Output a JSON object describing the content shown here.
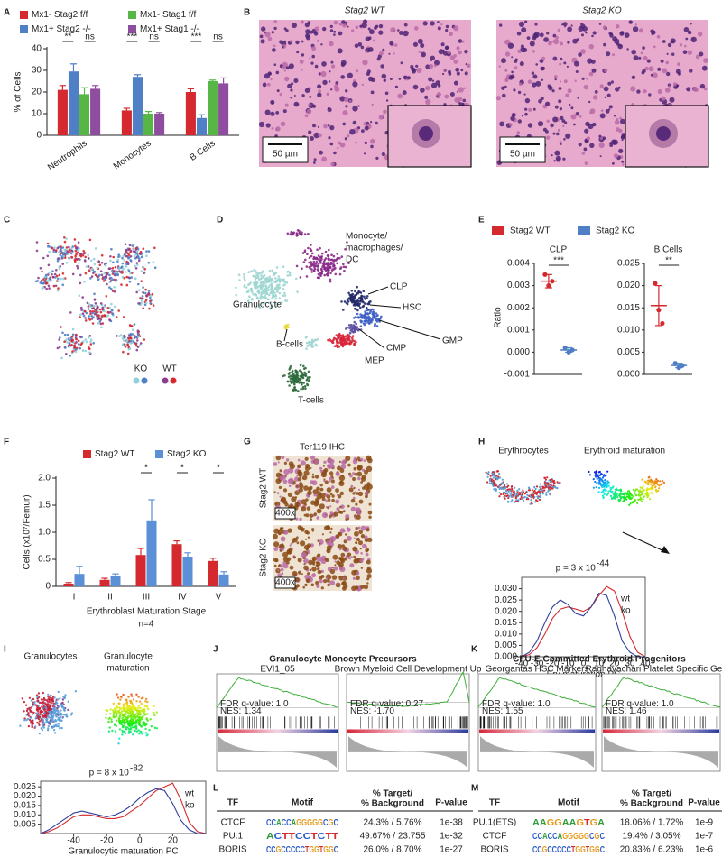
{
  "panel_labels": [
    "A",
    "B",
    "C",
    "D",
    "E",
    "F",
    "G",
    "H",
    "I",
    "J",
    "K",
    "L",
    "M"
  ],
  "chart_data": [
    {
      "type": "bar",
      "ylabel": "% of Cells",
      "categories": [
        "Neutrophils",
        "Monocytes",
        "B Cells"
      ],
      "series": [
        {
          "name": "Mx1- Stag2 f/f",
          "color": "#d42a2f",
          "values": [
            21,
            11.5,
            20
          ],
          "errors": [
            2,
            1,
            1.5
          ]
        },
        {
          "name": "Mx1+ Stag2 -/-",
          "color": "#4f7fc4",
          "values": [
            29.5,
            27,
            8
          ],
          "errors": [
            3.5,
            1,
            1.5
          ]
        },
        {
          "name": "Mx1- Stag1 f/f",
          "color": "#58b647",
          "values": [
            19,
            10,
            25
          ],
          "errors": [
            3,
            1,
            0.5
          ]
        },
        {
          "name": "Mx1+ Stag1 -/-",
          "color": "#8e4d9e",
          "values": [
            21.5,
            10,
            24
          ],
          "errors": [
            1.5,
            0.5,
            2.5
          ]
        }
      ],
      "significance": [
        [
          "**",
          "ns"
        ],
        [
          "***",
          "ns"
        ],
        [
          "***",
          "ns"
        ]
      ],
      "ylim": [
        0,
        40
      ],
      "yticks": [
        0,
        10,
        20,
        30,
        40
      ]
    },
    {
      "type": "dot",
      "ylabel": "Ratio",
      "series": [
        {
          "name": "Stag2 WT",
          "color": "#d42a2f"
        },
        {
          "name": "Stag2 KO",
          "color": "#4f7fc4"
        }
      ],
      "subplots": [
        {
          "title": "CLP",
          "points": [
            [
              0.0035,
              0.003,
              0.0032
            ],
            [
              0.0002,
              0,
              0.0001
            ]
          ],
          "means": [
            0.0032,
            0.0001
          ],
          "errors": [
            0.0003,
            0.0001
          ],
          "significance": "***",
          "ylim": [
            -0.001,
            0.004
          ],
          "yticks": [
            -0.001,
            {
              "value": 0,
              "label": "0.000"
            },
            0.001,
            0.002,
            0.003,
            0.004
          ]
        },
        {
          "title": "B Cells",
          "points": [
            [
              0.0205,
              0.0145,
              0.0115
            ],
            [
              0.0025,
              0.0015,
              0.002
            ]
          ],
          "means": [
            0.0155,
            0.002
          ],
          "errors": [
            0.0045,
            0.0005
          ],
          "significance": "**",
          "ylim": [
            0,
            0.025
          ],
          "yticks": [
            {
              "value": 0,
              "label": "0.000"
            },
            0.005,
            {
              "value": 0.01,
              "label": "0.010"
            },
            0.015,
            {
              "value": 0.02,
              "label": "0.020"
            },
            0.025
          ]
        }
      ]
    },
    {
      "type": "bar",
      "ylabel": "Cells (x10⁷/Femur)",
      "xlabel": "Erythroblast Maturation Stage",
      "note": "n=4",
      "categories": [
        "I",
        "II",
        "III",
        "IV",
        "V"
      ],
      "series": [
        {
          "name": "Stag2 WT",
          "color": "#d42a2f",
          "values": [
            0.05,
            0.12,
            0.58,
            0.78,
            0.47
          ],
          "errors": [
            0.02,
            0.03,
            0.12,
            0.06,
            0.05
          ]
        },
        {
          "name": "Stag2 KO",
          "color": "#5b8fd6",
          "values": [
            0.23,
            0.19,
            1.22,
            0.55,
            0.22
          ],
          "errors": [
            0.14,
            0.04,
            0.38,
            0.07,
            0.05
          ]
        }
      ],
      "significance": [
        null,
        null,
        "*",
        "*",
        "*"
      ],
      "ylim": [
        0,
        2
      ],
      "yticks": [
        0,
        0.5,
        {
          "value": 1,
          "label": "1.0"
        },
        1.5,
        {
          "value": 2,
          "label": "2.0"
        }
      ]
    },
    {
      "type": "line",
      "scatter_titles": [
        [
          "Erythrocytes"
        ],
        [
          "Erythroid maturation"
        ]
      ],
      "annotation": {
        "text": "p = 3 x 10",
        "exponent": "-44"
      },
      "xlabel": "Ery maturation PC",
      "x": [
        -40,
        -35,
        -30,
        -25,
        -20,
        -15,
        -10,
        -5,
        0,
        5,
        10,
        15,
        20,
        25,
        30,
        35,
        40
      ],
      "series": [
        {
          "name": "wt",
          "color": "#d42a2f",
          "values": [
            0,
            0.001,
            0.004,
            0.01,
            0.017,
            0.021,
            0.022,
            0.021,
            0.02,
            0.022,
            0.027,
            0.031,
            0.029,
            0.02,
            0.009,
            0.002,
            0
          ]
        },
        {
          "name": "ko",
          "color": "#2f3f9c",
          "values": [
            0,
            0.002,
            0.007,
            0.015,
            0.022,
            0.025,
            0.023,
            0.019,
            0.018,
            0.022,
            0.028,
            0.027,
            0.018,
            0.007,
            0.002,
            0,
            0
          ]
        }
      ],
      "xlim": [
        -40,
        40
      ],
      "xticks": [
        -40,
        -30,
        -20,
        -10,
        0,
        10,
        20,
        30,
        40
      ],
      "ylim": [
        0,
        0.035
      ],
      "yticks": [
        {
          "value": 0,
          "label": "0.000"
        },
        0.005,
        {
          "value": 0.01,
          "label": "0.010"
        },
        0.015,
        {
          "value": 0.02,
          "label": "0.020"
        },
        0.025,
        {
          "value": 0.03,
          "label": "0.030"
        }
      ]
    },
    {
      "type": "line",
      "scatter_titles": [
        [
          "Granulocytes"
        ],
        [
          "Granulocyte",
          "maturation"
        ]
      ],
      "annotation": {
        "text": "p = 8 x 10",
        "exponent": "-82"
      },
      "xlabel": "Granulocytic maturation PC",
      "x": [
        -60,
        -55,
        -50,
        -45,
        -40,
        -35,
        -30,
        -25,
        -20,
        -15,
        -10,
        -5,
        0,
        5,
        10,
        15,
        20,
        25,
        30,
        35,
        40
      ],
      "series": [
        {
          "name": "wt",
          "color": "#d42a2f",
          "values": [
            0,
            0.001,
            0.003,
            0.006,
            0.009,
            0.01,
            0.01,
            0.009,
            0.008,
            0.008,
            0.009,
            0.012,
            0.015,
            0.019,
            0.023,
            0.025,
            0.027,
            0.018,
            0.006,
            0.001,
            0
          ]
        },
        {
          "name": "ko",
          "color": "#2f3f9c",
          "values": [
            0,
            0.002,
            0.005,
            0.008,
            0.011,
            0.012,
            0.011,
            0.01,
            0.009,
            0.01,
            0.012,
            0.015,
            0.019,
            0.022,
            0.024,
            0.023,
            0.016,
            0.007,
            0.002,
            0,
            0
          ]
        }
      ],
      "xlim": [
        -60,
        40
      ],
      "xticks": [
        -40,
        -20,
        0,
        20
      ],
      "ylim": [
        0,
        0.028
      ],
      "yticks": [
        0.005,
        {
          "value": 0.01,
          "label": "0.010"
        },
        0.015,
        {
          "value": 0.02,
          "label": "0.020"
        },
        0.025
      ]
    }
  ],
  "panel_b": {
    "titles": [
      "Stag2 WT",
      "Stag2 KO"
    ],
    "scale_bars": [
      "50 µm",
      "50 µm"
    ]
  },
  "panel_c": {
    "legend": [
      {
        "name": "KO",
        "colors": [
          "#8fd0dc",
          "#4d7fc8"
        ]
      },
      {
        "name": "WT",
        "colors": [
          "#8e3c8c",
          "#d7282f"
        ]
      }
    ]
  },
  "panel_d": {
    "labels": [
      [
        "Monocyte/",
        "macrophages/",
        "DC"
      ],
      [
        "CLP"
      ],
      [
        "HSC"
      ],
      [
        "Granulocyte"
      ],
      [
        "GMP"
      ],
      [
        "CMP"
      ],
      [
        "MEP"
      ],
      [
        "B-cells"
      ],
      [
        "T-cells"
      ]
    ]
  },
  "panel_g": {
    "title": "Ter119 IHC",
    "rows": [
      "Stag2 WT",
      "Stag2 KO"
    ],
    "magnification": [
      "400x",
      "400x"
    ]
  },
  "panel_j": {
    "title": "Granulocyte Monocyte Precursors",
    "plots": [
      {
        "title": "EVI1_05",
        "fdr": "FDR q-value: 1.0",
        "nes": "NES: 1.34"
      },
      {
        "title": "Brown Myeloid Cell Development Up",
        "fdr": "FDR q-value: 0.27",
        "nes": "NES: -1.70"
      }
    ]
  },
  "panel_k": {
    "title": "CFU-E Committed Erythroid Progenitors",
    "plots": [
      {
        "title": "Georgantas HSC Markers",
        "fdr": "FDR q-value: 1.0",
        "nes": "NES: 1.55"
      },
      {
        "title": "Raghavachari Platelet Specific Genes",
        "fdr": "FDR q-value: 1.0",
        "nes": "NES: 1.46"
      }
    ]
  },
  "panel_l": {
    "headers": [
      [
        "TF"
      ],
      [
        "Motif"
      ],
      [
        "% Target/",
        "% Background"
      ],
      [
        "P-value"
      ]
    ],
    "rows": [
      [
        "CTCF",
        "CCACCAGGGGGCGC",
        "24.3% / 5.76%",
        "1e-38"
      ],
      [
        "PU.1",
        "ACTTCCTCTT",
        "49.67% / 23.755",
        "1e-32"
      ],
      [
        "BORIS",
        "CCGCCCCCTGGTGGC",
        "26.0% / 8.70%",
        "1e-27"
      ]
    ]
  },
  "panel_m": {
    "headers": [
      [
        "TF"
      ],
      [
        "Motif"
      ],
      [
        "% Target/",
        "% Background"
      ],
      [
        "P-value"
      ]
    ],
    "rows": [
      [
        "PU.1(ETS)",
        "AAGGAAGTGA",
        "18.06% / 1.72%",
        "1e-9"
      ],
      [
        "CTCF",
        "CCACCAGGGGGCGC",
        "19.4% / 3.05%",
        "1e-7"
      ],
      [
        "BORIS",
        "CCGCCCCCTGGTGGC",
        "20.83% / 6.23%",
        "1e-6"
      ]
    ]
  }
}
